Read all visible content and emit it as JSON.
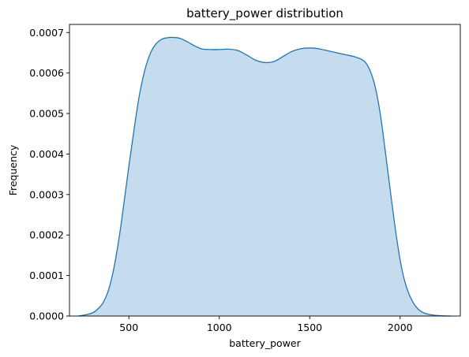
{
  "chart_data": {
    "type": "area",
    "title": "battery_power distribution",
    "xlabel": "battery_power",
    "ylabel": "Frequency",
    "xlim": [
      171.5,
      2333
    ],
    "ylim": [
      0,
      0.00072
    ],
    "xticks": [
      500,
      1000,
      1500,
      2000
    ],
    "xtick_labels": [
      "500",
      "1000",
      "1500",
      "2000"
    ],
    "yticks": [
      0,
      0.0001,
      0.0002,
      0.0003,
      0.0004,
      0.0005,
      0.0006,
      0.0007
    ],
    "ytick_labels": [
      "0.0000",
      "0.0001",
      "0.0002",
      "0.0003",
      "0.0004",
      "0.0005",
      "0.0006",
      "0.0007"
    ],
    "grid": false,
    "legend": "none",
    "series": [
      {
        "x": [
          220,
          260,
          300,
          330,
          360,
          390,
          420,
          450,
          470,
          500,
          530,
          560,
          590,
          620,
          650,
          680,
          710,
          740,
          780,
          820,
          860,
          900,
          950,
          1000,
          1050,
          1100,
          1150,
          1200,
          1250,
          1300,
          1350,
          1400,
          1450,
          1500,
          1550,
          1600,
          1650,
          1700,
          1750,
          1800,
          1830,
          1860,
          1890,
          1920,
          1950,
          1980,
          2010,
          2040,
          2070,
          2100,
          2130,
          2160,
          2190,
          2220,
          2250,
          2280
        ],
        "values": [
          0.0,
          3e-06,
          8e-06,
          1.8e-05,
          3.5e-05,
          6.8e-05,
          0.000125,
          0.000205,
          0.00027,
          0.00037,
          0.000465,
          0.00055,
          0.00061,
          0.00065,
          0.000672,
          0.000683,
          0.000687,
          0.000688,
          0.000686,
          0.000678,
          0.000668,
          0.00066,
          0.000658,
          0.000658,
          0.000659,
          0.000656,
          0.000645,
          0.000632,
          0.000626,
          0.000628,
          0.00064,
          0.000653,
          0.00066,
          0.000662,
          0.00066,
          0.000655,
          0.00065,
          0.000645,
          0.00064,
          0.00063,
          0.00061,
          0.00057,
          0.0005,
          0.0004,
          0.000295,
          0.000195,
          0.000115,
          6.5e-05,
          3.5e-05,
          1.7e-05,
          8e-06,
          4e-06,
          2e-06,
          1e-06,
          3e-07,
          0.0
        ]
      }
    ],
    "colors": {
      "line": "#1f77b4",
      "fill": "#c5dbee"
    }
  }
}
